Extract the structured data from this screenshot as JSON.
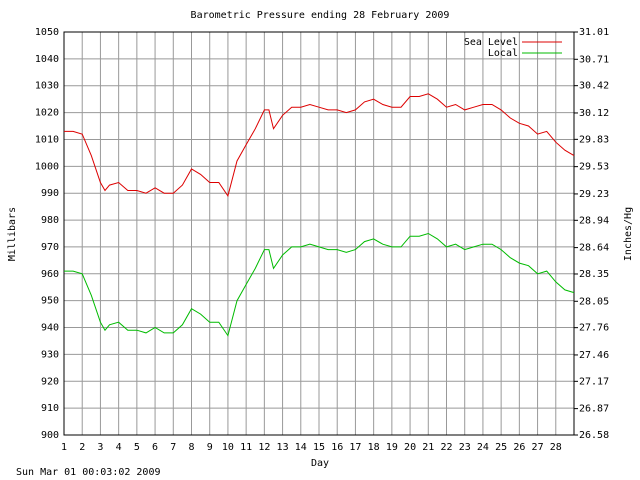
{
  "chart_data": {
    "type": "line",
    "title": "Barometric Pressure ending 28 February 2009",
    "x_label": "Day",
    "y_label": "Millibars",
    "y2_label": "Inches/Hg",
    "footer": "Sun Mar 01 00:03:02 2009",
    "x": [
      1,
      1.5,
      2,
      2.5,
      3,
      3.25,
      3.5,
      4,
      4.5,
      5,
      5.5,
      6,
      6.5,
      7,
      7.5,
      8,
      8.5,
      9,
      9.5,
      10,
      10.5,
      11,
      11.5,
      12,
      12.25,
      12.5,
      13,
      13.5,
      14,
      14.5,
      15,
      15.5,
      16,
      16.5,
      17,
      17.5,
      18,
      18.5,
      19,
      19.5,
      20,
      20.5,
      21,
      21.5,
      22,
      22.5,
      23,
      23.5,
      24,
      24.5,
      25,
      25.5,
      26,
      26.5,
      27,
      27.5,
      28,
      28.5,
      29
    ],
    "series": [
      {
        "name": "Sea Level",
        "color": "#dd0000",
        "values": [
          1013,
          1013,
          1012,
          1004,
          994,
          991,
          993,
          994,
          991,
          991,
          990,
          992,
          990,
          990,
          993,
          999,
          997,
          994,
          994,
          989,
          1002,
          1008,
          1014,
          1021,
          1021,
          1014,
          1019,
          1022,
          1022,
          1023,
          1022,
          1021,
          1021,
          1020,
          1021,
          1024,
          1025,
          1023,
          1022,
          1022,
          1026,
          1026,
          1027,
          1025,
          1022,
          1023,
          1021,
          1022,
          1023,
          1023,
          1021,
          1018,
          1016,
          1015,
          1012,
          1013,
          1009,
          1006,
          1004
        ]
      },
      {
        "name": "Local",
        "color": "#00bb00",
        "values": [
          961,
          961,
          960,
          952,
          942,
          939,
          941,
          942,
          939,
          939,
          938,
          940,
          938,
          938,
          941,
          947,
          945,
          942,
          942,
          937,
          950,
          956,
          962,
          969,
          969,
          962,
          967,
          970,
          970,
          971,
          970,
          969,
          969,
          968,
          969,
          972,
          973,
          971,
          970,
          970,
          974,
          974,
          975,
          973,
          970,
          971,
          969,
          970,
          971,
          971,
          969,
          966,
          964,
          963,
          960,
          961,
          957,
          954,
          953
        ]
      }
    ],
    "xlim": [
      1,
      29
    ],
    "xticks": [
      1,
      2,
      3,
      4,
      5,
      6,
      7,
      8,
      9,
      10,
      11,
      12,
      13,
      14,
      15,
      16,
      17,
      18,
      19,
      20,
      21,
      22,
      23,
      24,
      25,
      26,
      27,
      28
    ],
    "ylim": [
      900,
      1050
    ],
    "yticks": [
      900,
      910,
      920,
      930,
      940,
      950,
      960,
      970,
      980,
      990,
      1000,
      1010,
      1020,
      1030,
      1040,
      1050
    ],
    "y2lim": [
      26.58,
      31.01
    ],
    "y2ticks": [
      26.58,
      26.87,
      27.17,
      27.46,
      27.76,
      28.05,
      28.35,
      28.64,
      28.94,
      29.23,
      29.53,
      29.83,
      30.12,
      30.42,
      30.71,
      31.01
    ],
    "grid": true,
    "legend": "top-right"
  }
}
